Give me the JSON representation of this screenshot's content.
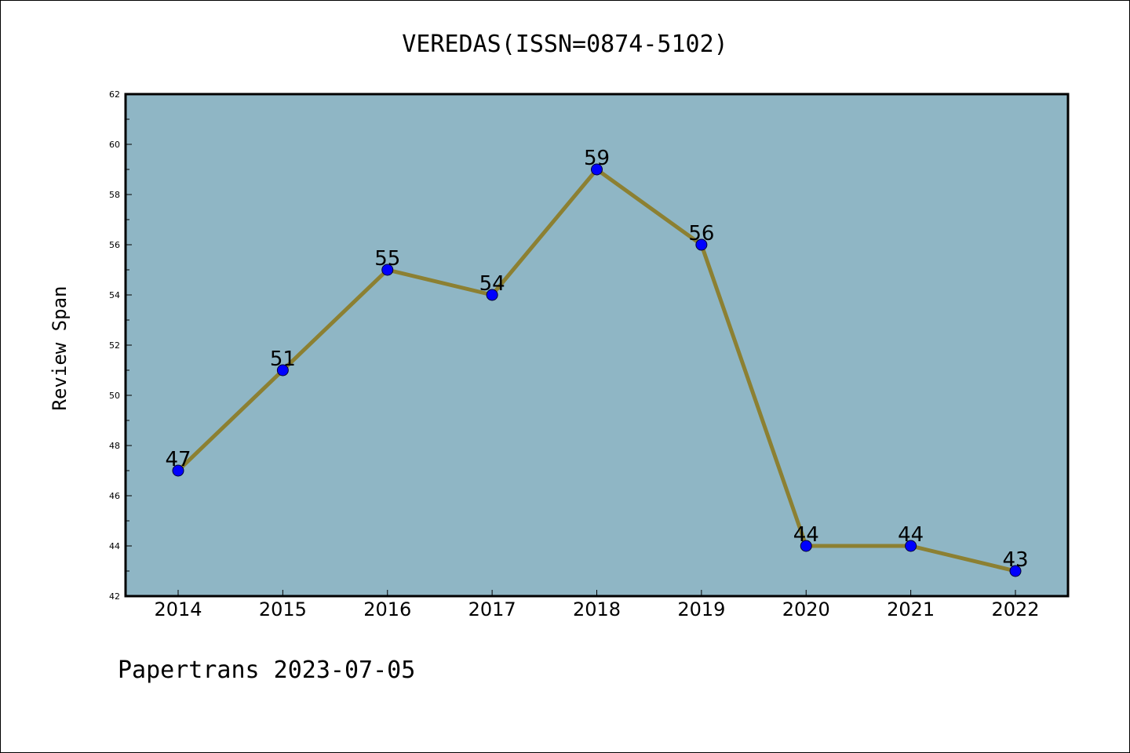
{
  "chart_data": {
    "type": "line",
    "title": "VEREDAS(ISSN=0874-5102)",
    "xlabel": "",
    "ylabel": "Review Span",
    "categories": [
      "2014",
      "2015",
      "2016",
      "2017",
      "2018",
      "2019",
      "2020",
      "2021",
      "2022"
    ],
    "series": [
      {
        "values": [
          47,
          51,
          55,
          54,
          59,
          56,
          44,
          44,
          43
        ]
      }
    ],
    "ylim": [
      42,
      62
    ],
    "yticks": [
      42,
      44,
      46,
      48,
      50,
      52,
      54,
      56,
      58,
      60,
      62
    ],
    "grid": false,
    "legend": "none",
    "colors": {
      "plot_background": "#8fb6c5",
      "line": "#8c8032",
      "marker": "#0000ff"
    }
  },
  "footer": "Papertrans 2023-07-05"
}
